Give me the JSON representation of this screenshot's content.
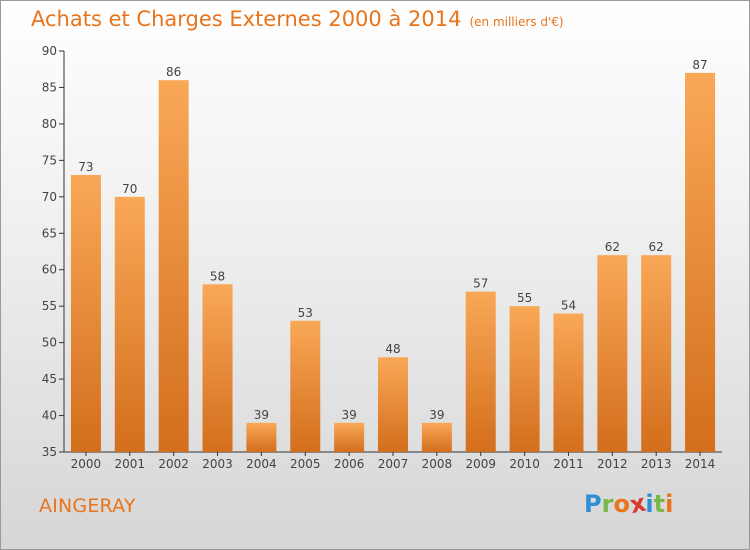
{
  "title": "Achats et Charges Externes 2000 à 2014",
  "subtitle": "(en milliers d'€)",
  "place": "AINGERAY",
  "logo": {
    "letters": [
      "P",
      "r",
      "o",
      "x",
      "i",
      "t",
      "i"
    ],
    "colors": [
      "#2f8fd6",
      "#7ab648",
      "#e8741b",
      "#d63b2f",
      "#2f8fd6",
      "#7ab648",
      "#e8741b"
    ]
  },
  "colors": {
    "accent": "#e8741b",
    "bar_light": "#f7a552",
    "bar_dark": "#d6711f"
  },
  "chart_data": {
    "type": "bar",
    "categories": [
      "2000",
      "2001",
      "2002",
      "2003",
      "2004",
      "2005",
      "2006",
      "2007",
      "2008",
      "2009",
      "2010",
      "2011",
      "2012",
      "2013",
      "2014"
    ],
    "values": [
      73,
      70,
      86,
      58,
      39,
      53,
      39,
      48,
      39,
      57,
      55,
      54,
      62,
      62,
      87
    ],
    "title": "Achats et Charges Externes 2000 à 2014",
    "subtitle": "(en milliers d'€)",
    "ylim": [
      35,
      90
    ],
    "yticks": [
      35,
      40,
      45,
      50,
      55,
      60,
      65,
      70,
      75,
      80,
      85,
      90
    ],
    "grid": false
  }
}
